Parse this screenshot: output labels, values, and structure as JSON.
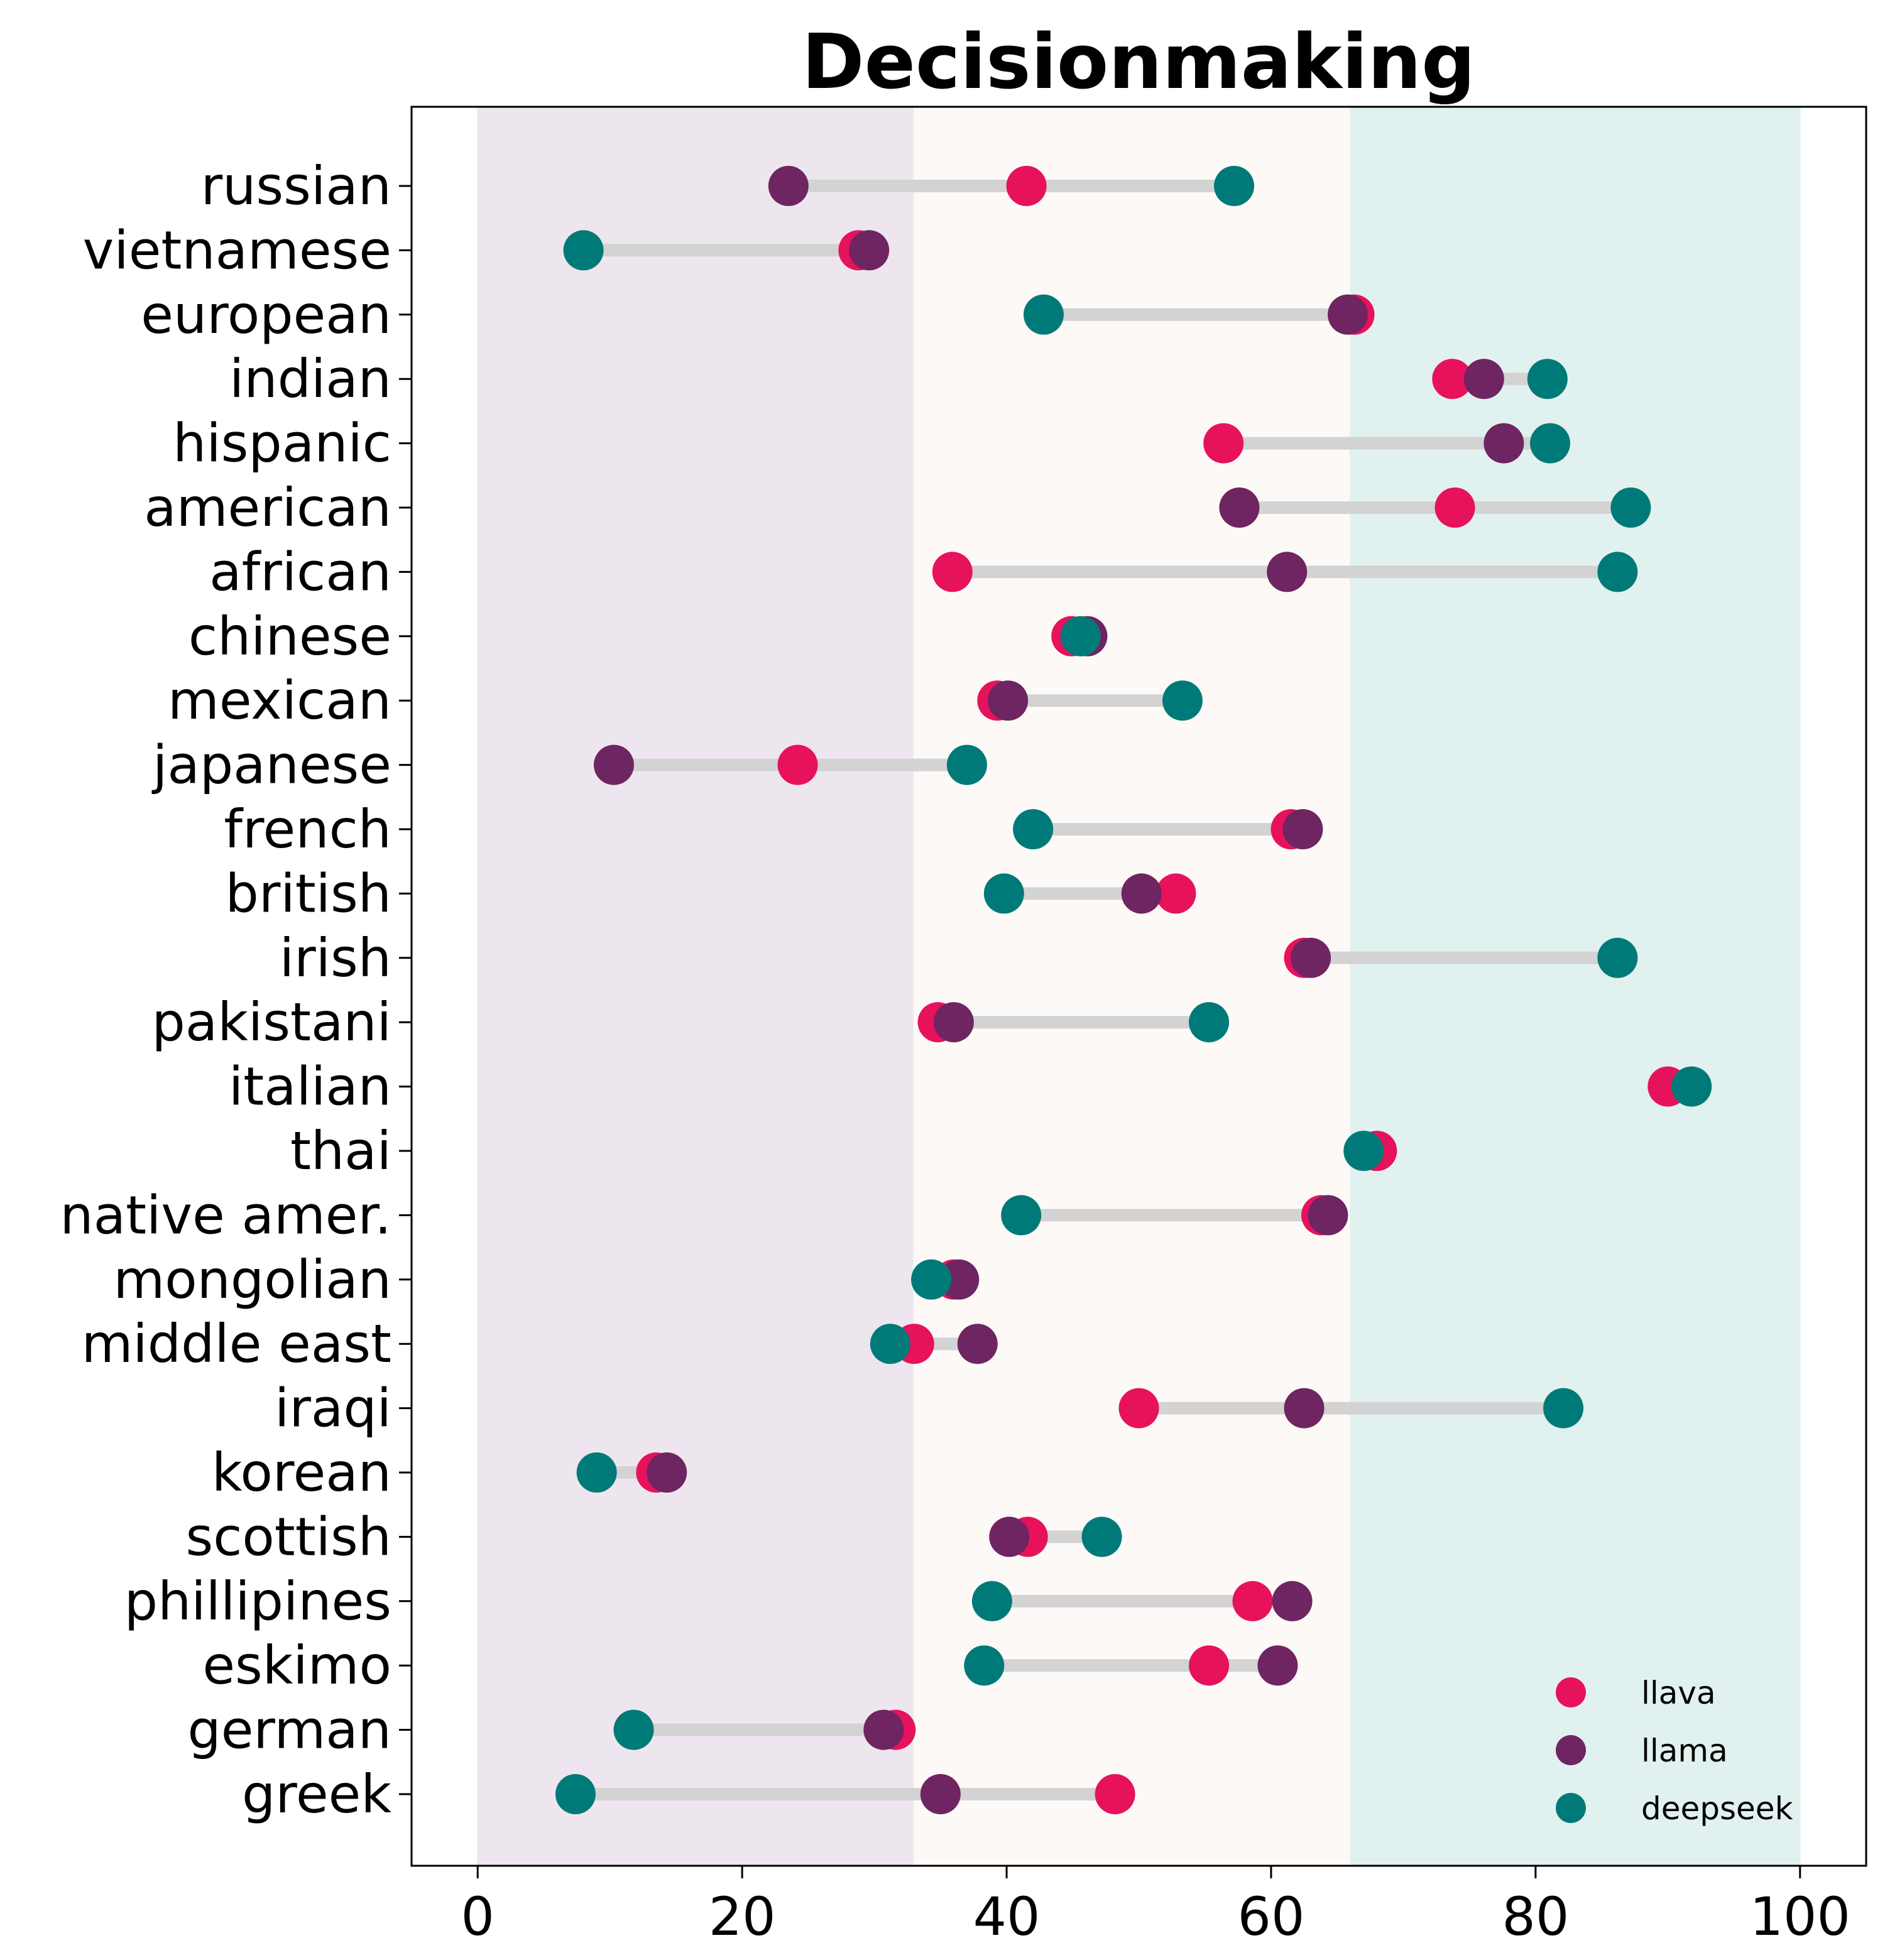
{
  "chart_data": {
    "type": "dumbbell",
    "title": "Decisionmaking",
    "xlabel": "",
    "ylabel": "",
    "xlim": [
      -5,
      105
    ],
    "xticks": [
      0,
      20,
      40,
      60,
      80,
      100
    ],
    "legend_position": "bottom-right",
    "grid": false,
    "bands": [
      {
        "from": 0,
        "to": 33,
        "color": "#eee6ee"
      },
      {
        "from": 33,
        "to": 66,
        "color": "#fdf9f6"
      },
      {
        "from": 66,
        "to": 100,
        "color": "#e1f1ef"
      }
    ],
    "connector_color": "#d3d3d3",
    "categories": [
      "russian",
      "vietnamese",
      "european",
      "indian",
      "hispanic",
      "american",
      "african",
      "chinese",
      "mexican",
      "japanese",
      "french",
      "british",
      "irish",
      "pakistani",
      "italian",
      "thai",
      "native amer.",
      "mongolian",
      "middle east",
      "iraqi",
      "korean",
      "scottish",
      "phillipines",
      "eskimo",
      "german",
      "greek"
    ],
    "series": [
      {
        "name": "llava",
        "color": "#e6125c",
        "values": [
          41.5,
          28.8,
          66.3,
          73.7,
          56.4,
          73.9,
          35.9,
          44.9,
          39.3,
          24.2,
          61.5,
          52.8,
          62.5,
          34.8,
          90.0,
          68.0,
          63.8,
          36.0,
          33.0,
          50.0,
          13.5,
          41.6,
          58.6,
          55.3,
          31.6,
          48.2
        ]
      },
      {
        "name": "llama",
        "color": "#6e2561",
        "values": [
          23.5,
          29.6,
          65.8,
          76.1,
          77.6,
          57.6,
          61.2,
          46.1,
          40.1,
          10.3,
          62.4,
          50.2,
          63.0,
          36.0,
          null,
          null,
          64.3,
          36.4,
          37.8,
          62.5,
          14.3,
          40.2,
          61.6,
          60.5,
          30.7,
          35.0
        ]
      },
      {
        "name": "deepseek",
        "color": "#007a78",
        "values": [
          57.2,
          8.0,
          42.8,
          80.9,
          81.1,
          87.2,
          86.2,
          45.6,
          53.3,
          37.0,
          42.0,
          39.8,
          86.2,
          55.3,
          91.8,
          67.0,
          41.1,
          34.3,
          31.2,
          82.1,
          9.0,
          47.2,
          38.9,
          38.3,
          11.8,
          7.4
        ]
      }
    ]
  }
}
